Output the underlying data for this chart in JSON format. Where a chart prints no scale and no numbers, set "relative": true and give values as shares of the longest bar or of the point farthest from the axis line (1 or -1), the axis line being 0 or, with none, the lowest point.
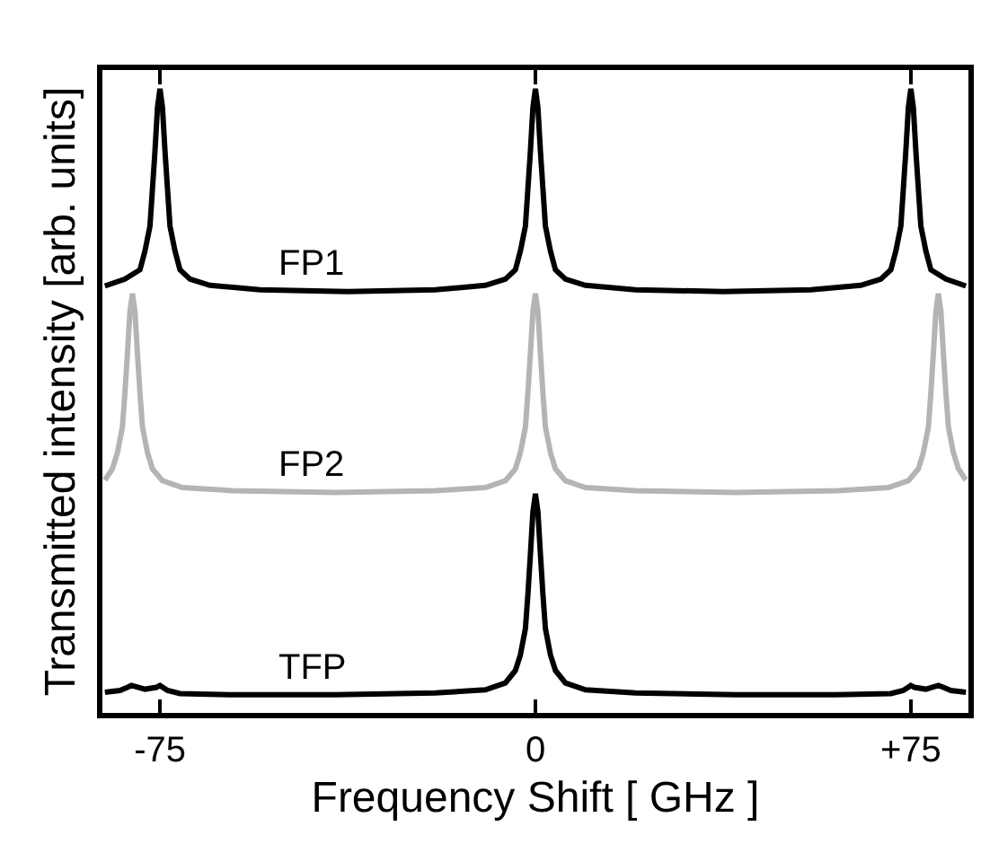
{
  "chart_data": {
    "type": "line",
    "relative": true,
    "xlabel": "Frequency Shift [ GHz ]",
    "ylabel": "Transmitted intensity [arb. units]",
    "xlim": [
      -86.5,
      86.5
    ],
    "xticks": [
      -75,
      0,
      {
        "value": 75,
        "label": "+75"
      }
    ],
    "legend": false,
    "marker": "none",
    "line_style": "solid",
    "series": [
      {
        "name": "FP1",
        "color": "#000000",
        "x": [
          -86,
          -82,
          -79,
          -78,
          -77,
          -76.5,
          -76,
          -75.5,
          -75,
          -74.5,
          -74,
          -73.5,
          -73,
          -72,
          -71,
          -69,
          -65,
          -55,
          -37.5,
          -20,
          -10,
          -6,
          -4,
          -3,
          -2,
          -1.5,
          -1,
          -0.5,
          0,
          0.5,
          1,
          1.5,
          2,
          3,
          4,
          6,
          10,
          20,
          37.5,
          55,
          65,
          69,
          71,
          72,
          73,
          73.5,
          74,
          74.5,
          75,
          75.5,
          76,
          76.5,
          77,
          78,
          79,
          82,
          86
        ],
        "values": [
          0.684,
          0.695,
          0.71,
          0.74,
          0.78,
          0.84,
          0.9,
          0.97,
          1.0,
          0.97,
          0.9,
          0.84,
          0.78,
          0.74,
          0.71,
          0.695,
          0.685,
          0.678,
          0.675,
          0.678,
          0.685,
          0.695,
          0.71,
          0.74,
          0.78,
          0.84,
          0.9,
          0.97,
          1.0,
          0.97,
          0.9,
          0.84,
          0.78,
          0.74,
          0.71,
          0.695,
          0.685,
          0.678,
          0.675,
          0.678,
          0.685,
          0.695,
          0.71,
          0.74,
          0.78,
          0.84,
          0.9,
          0.97,
          1.0,
          0.97,
          0.9,
          0.84,
          0.78,
          0.74,
          0.71,
          0.695,
          0.684
        ]
      },
      {
        "name": "FP2",
        "color": "#b4b4b4",
        "x": [
          -86,
          -84.5,
          -83.5,
          -82.5,
          -82,
          -81.5,
          -81,
          -80.5,
          -80,
          -79.5,
          -79,
          -78.5,
          -77.5,
          -76.5,
          -74.5,
          -70.5,
          -60.5,
          -40,
          -20,
          -10,
          -6,
          -4,
          -3,
          -2,
          -1.5,
          -1,
          -0.5,
          0,
          0.5,
          1,
          1.5,
          2,
          3,
          4,
          6,
          10,
          20,
          40,
          60.5,
          70.5,
          74.5,
          76.5,
          77.5,
          78.5,
          79,
          79.5,
          80,
          80.5,
          81,
          81.5,
          82,
          82.5,
          83.5,
          84.5,
          86
        ],
        "values": [
          0.373,
          0.391,
          0.417,
          0.458,
          0.513,
          0.576,
          0.643,
          0.672,
          0.643,
          0.576,
          0.513,
          0.458,
          0.417,
          0.391,
          0.372,
          0.361,
          0.356,
          0.353,
          0.356,
          0.361,
          0.372,
          0.391,
          0.417,
          0.458,
          0.513,
          0.576,
          0.643,
          0.672,
          0.643,
          0.576,
          0.513,
          0.458,
          0.417,
          0.391,
          0.372,
          0.361,
          0.356,
          0.353,
          0.356,
          0.361,
          0.372,
          0.391,
          0.417,
          0.458,
          0.513,
          0.576,
          0.643,
          0.672,
          0.643,
          0.576,
          0.513,
          0.458,
          0.417,
          0.391,
          0.373
        ]
      },
      {
        "name": "TFP",
        "color": "#000000",
        "x": [
          -86,
          -83,
          -81.5,
          -80.7,
          -78,
          -75.7,
          -75,
          -73.5,
          -71,
          -60,
          -40,
          -20,
          -10,
          -6,
          -4,
          -3,
          -2,
          -1.5,
          -1,
          -0.5,
          0,
          0.5,
          1,
          1.5,
          2,
          3,
          4,
          6,
          10,
          20,
          40,
          60,
          71,
          73.5,
          75,
          75.7,
          78,
          80.5,
          81.5,
          83,
          86
        ],
        "values": [
          0.033,
          0.036,
          0.041,
          0.044,
          0.038,
          0.041,
          0.044,
          0.036,
          0.031,
          0.029,
          0.029,
          0.032,
          0.037,
          0.048,
          0.068,
          0.093,
          0.135,
          0.19,
          0.254,
          0.322,
          0.351,
          0.322,
          0.254,
          0.19,
          0.135,
          0.093,
          0.068,
          0.048,
          0.037,
          0.032,
          0.029,
          0.029,
          0.031,
          0.036,
          0.044,
          0.041,
          0.038,
          0.044,
          0.041,
          0.036,
          0.033
        ]
      }
    ]
  }
}
